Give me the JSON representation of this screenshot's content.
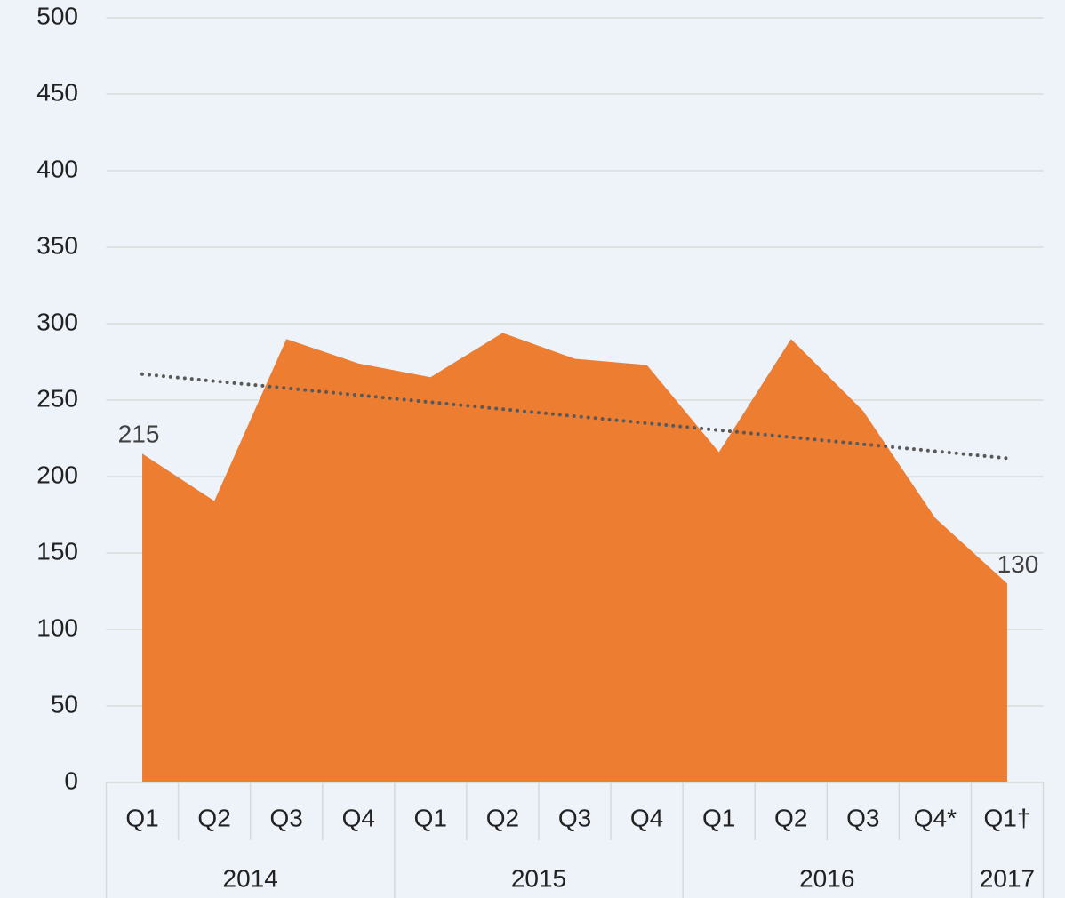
{
  "chart_data": {
    "type": "area",
    "groups": [
      {
        "name": "2014",
        "categories": [
          "Q1",
          "Q2",
          "Q3",
          "Q4"
        ]
      },
      {
        "name": "2015",
        "categories": [
          "Q1",
          "Q2",
          "Q3",
          "Q4"
        ]
      },
      {
        "name": "2016",
        "categories": [
          "Q1",
          "Q2",
          "Q3",
          "Q4*"
        ]
      },
      {
        "name": "2017",
        "categories": [
          "Q1†"
        ]
      }
    ],
    "values": [
      215,
      184,
      290,
      274,
      265,
      294,
      277,
      273,
      216,
      290,
      243,
      173,
      130
    ],
    "value_labels": [
      "215",
      null,
      null,
      null,
      null,
      null,
      null,
      null,
      null,
      null,
      null,
      null,
      "130"
    ],
    "color": "#ed7d31",
    "trendline": {
      "start": 267,
      "end": 212,
      "color": "#595959",
      "style": "dotted"
    },
    "ylim": [
      0,
      500
    ],
    "yticks": [
      0,
      50,
      100,
      150,
      200,
      250,
      300,
      350,
      400,
      450,
      500
    ],
    "grid": true
  }
}
